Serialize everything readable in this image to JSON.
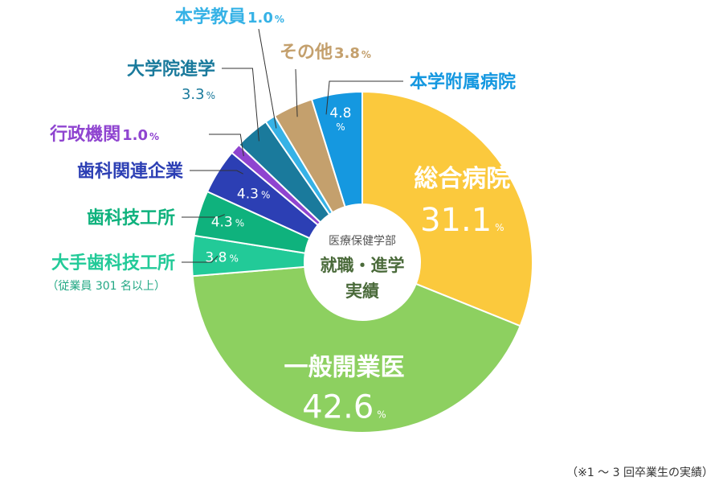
{
  "center": {
    "subtitle": "医療保健学部",
    "title_line1": "就職・進学",
    "title_line2": "実績"
  },
  "percent_symbol": "%",
  "footnote": "（※1 ～ 3 回卒業生の実績）",
  "chart_data": {
    "type": "pie",
    "style": "donut",
    "series": [
      {
        "name": "総合病院",
        "value": 31.1,
        "value_label": "31.1",
        "color": "#fbc93d"
      },
      {
        "name": "一般開業医",
        "value": 42.6,
        "value_label": "42.6",
        "color": "#8dd060"
      },
      {
        "name": "大手歯科技工所",
        "note": "（従業員 301 名以上）",
        "value": 3.8,
        "value_label": "3.8",
        "color": "#22ca98"
      },
      {
        "name": "歯科技工所",
        "value": 4.3,
        "value_label": "4.3",
        "color": "#0fb27d"
      },
      {
        "name": "歯科関連企業",
        "value": 4.3,
        "value_label": "4.3",
        "color": "#2c3fb4"
      },
      {
        "name": "行政機関",
        "value": 1.0,
        "value_label": "1.0",
        "color": "#8f44d0"
      },
      {
        "name": "大学院進学",
        "value": 3.3,
        "value_label": "3.3",
        "color": "#1a7a9c"
      },
      {
        "name": "本学教員",
        "value": 1.0,
        "value_label": "1.0",
        "color": "#36b2e6"
      },
      {
        "name": "その他",
        "value": 3.8,
        "value_label": "3.8",
        "color": "#c4a06d"
      },
      {
        "name": "本学附属病院",
        "value": 4.8,
        "value_label": "4.8",
        "color": "#1598e0"
      }
    ]
  }
}
